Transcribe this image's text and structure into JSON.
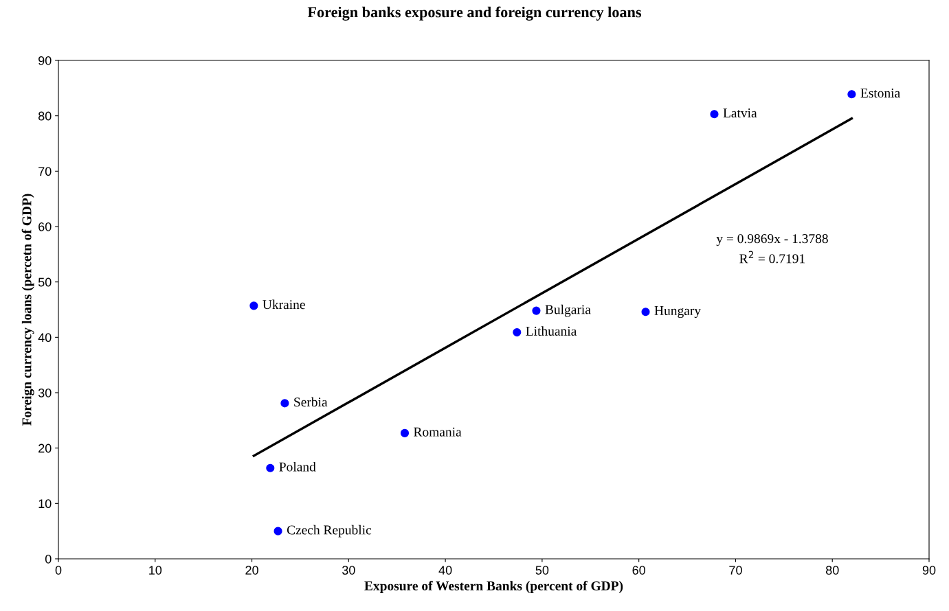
{
  "chart_data": {
    "type": "scatter",
    "title": "Foreign banks exposure and foreign currency loans",
    "xlabel": "Exposure of Western Banks (percent of GDP)",
    "ylabel": "Foreign currency loans (percetn of GDP)",
    "series": [
      {
        "color": "#0000ff",
        "marker": "circle",
        "x": [
          20.2,
          23.4,
          21.9,
          22.7,
          35.8,
          47.4,
          49.4,
          60.7,
          67.8,
          82.0
        ],
        "values": [
          45.7,
          28.1,
          16.4,
          5.0,
          22.7,
          40.9,
          44.8,
          44.6,
          80.3,
          83.9
        ]
      },
      {
        "type": "line",
        "color": "#000000",
        "marker": "none",
        "x": [
          20.2,
          82.0
        ],
        "values": [
          18.6,
          79.5
        ]
      }
    ],
    "annotations": [
      {
        "text": "Ukraine",
        "x": 20.2,
        "y": 45.7
      },
      {
        "text": "Serbia",
        "x": 23.4,
        "y": 28.1
      },
      {
        "text": "Poland",
        "x": 21.9,
        "y": 16.4
      },
      {
        "text": "Czech Republic",
        "x": 22.7,
        "y": 5.0
      },
      {
        "text": "Romania",
        "x": 35.8,
        "y": 22.7
      },
      {
        "text": "Lithuania",
        "x": 47.4,
        "y": 40.9
      },
      {
        "text": "Bulgaria",
        "x": 49.4,
        "y": 44.8
      },
      {
        "text": "Hungary",
        "x": 60.7,
        "y": 44.6
      },
      {
        "text": "Latvia",
        "x": 67.8,
        "y": 80.3
      },
      {
        "text": "Estonia",
        "x": 82.0,
        "y": 83.9
      },
      "y = 0.9869x - 1.3788",
      "R$^{2}$ = 0.7191"
    ],
    "xlim": [
      0,
      90
    ],
    "xticks": [
      0,
      10,
      20,
      30,
      40,
      50,
      60,
      70,
      80,
      90
    ],
    "ylim": [
      0,
      90
    ],
    "yticks": [
      0,
      10,
      20,
      30,
      40,
      50,
      60,
      70,
      80,
      90
    ],
    "grid": false,
    "legend": false
  }
}
